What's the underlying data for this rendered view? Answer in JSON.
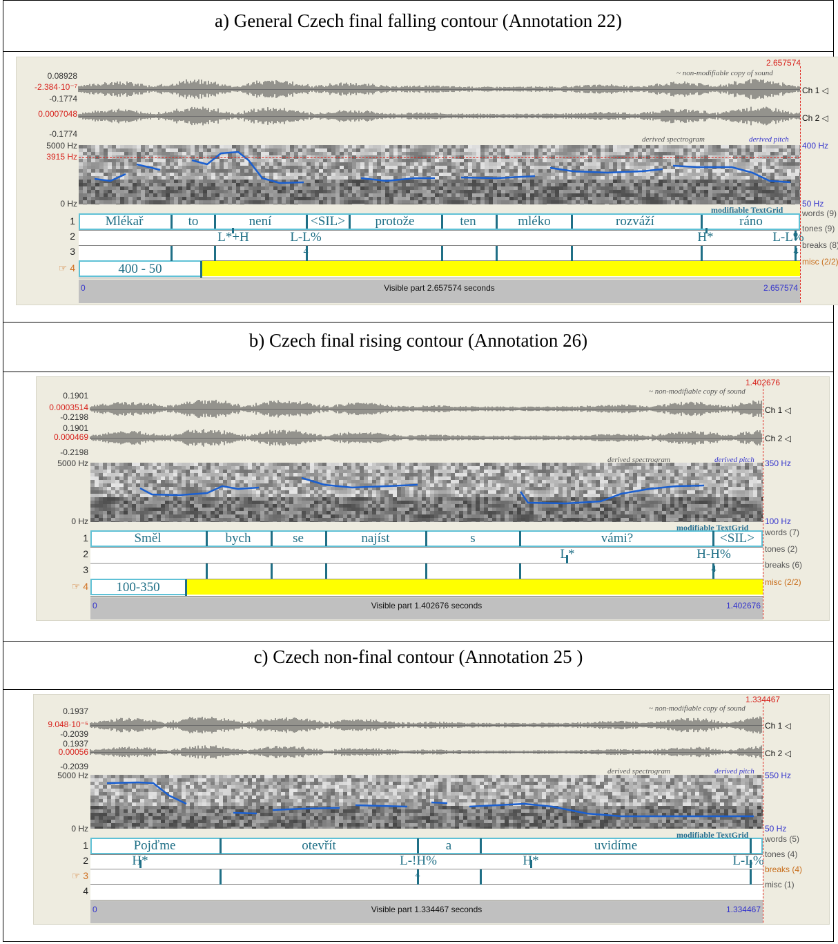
{
  "panels": [
    {
      "title": "a)   General Czech final falling contour (Annotation 22)",
      "end_time": "2.657574",
      "wave_label": "~ non-modifiable copy of sound",
      "ch1": {
        "top": "0.08928",
        "mid": "-2.384·10⁻⁷",
        "bot": "-0.1774",
        "name": "Ch 1 ◁"
      },
      "ch2": {
        "mid": "0.0007048",
        "bot": "-0.1774",
        "name": "Ch 2 ◁"
      },
      "spec": {
        "top_freq": "5000 Hz",
        "cursor_freq": "3915 Hz",
        "bot_freq": "0 Hz",
        "spec_label": "derived spectrogram",
        "pitch_label": "derived pitch",
        "pitch_top": "400 Hz",
        "pitch_bot": "50 Hz"
      },
      "textgrid_label": "modifiable TextGrid",
      "tier_names": [
        "words (9)",
        "tones (9)",
        "breaks (8)",
        "misc (2/2)"
      ],
      "words": [
        "Mlékař",
        "to",
        "není",
        "<SIL>",
        "protože",
        "ten",
        "mléko",
        "rozváží",
        "ráno"
      ],
      "tones": [
        "L*+H",
        "L-L%",
        "H*",
        "L-L%"
      ],
      "breaks": [
        "4",
        "4"
      ],
      "misc": [
        "400 - 50"
      ],
      "visible": "Visible part 2.657574 seconds",
      "start": "0",
      "end": "2.657574"
    },
    {
      "title": "b)   Czech final rising contour (Annotation 26)",
      "end_time": "1.402676",
      "wave_label": "~ non-modifiable copy of sound",
      "ch1": {
        "top": "0.1901",
        "mid": "0.0003514",
        "bot": "-0.2198",
        "name": "Ch 1 ◁"
      },
      "ch2": {
        "top": "0.1901",
        "mid": "0.000469",
        "bot": "-0.2198",
        "name": "Ch 2 ◁"
      },
      "spec": {
        "top_freq": "5000 Hz",
        "bot_freq": "0 Hz",
        "spec_label": "derived spectrogram",
        "pitch_label": "derived pitch",
        "pitch_top": "350 Hz",
        "pitch_bot": "100 Hz"
      },
      "textgrid_label": "modifiable TextGrid",
      "tier_names": [
        "words (7)",
        "tones (2)",
        "breaks (6)",
        "misc (2/2)"
      ],
      "words": [
        "Směl",
        "bych",
        "se",
        "najíst",
        "s",
        "vámi?",
        "<SIL>"
      ],
      "tones": [
        "L*",
        "H-H%"
      ],
      "breaks": [
        "4"
      ],
      "misc": [
        "100-350"
      ],
      "visible": "Visible part 1.402676 seconds",
      "start": "0",
      "end": "1.402676"
    },
    {
      "title": "c)   Czech non-final contour (Annotation 25 )",
      "end_time": "1.334467",
      "wave_label": "~ non-modifiable copy of sound",
      "ch1": {
        "top": "0.1937",
        "mid": "9.048·10⁻⁵",
        "bot": "-0.2039",
        "name": "Ch 1 ◁"
      },
      "ch2": {
        "top": "0.1937",
        "mid": "0.00056",
        "bot": "-0.2039",
        "name": "Ch 2 ◁"
      },
      "spec": {
        "top_freq": "5000 Hz",
        "bot_freq": "0 Hz",
        "spec_label": "derived spectrogram",
        "pitch_label": "derived pitch",
        "pitch_top": "550 Hz",
        "pitch_bot": "50 Hz"
      },
      "textgrid_label": "modifiable TextGrid",
      "tier_names": [
        "words (5)",
        "tones (4)",
        "breaks (4)",
        "misc (1)"
      ],
      "words": [
        "Pojďme",
        "otevřít",
        "a",
        "uvidíme"
      ],
      "tones": [
        "H*",
        "L-!H%",
        "H*",
        "L-L%"
      ],
      "breaks": [
        "4"
      ],
      "misc": [],
      "visible": "Visible part 1.334467 seconds",
      "start": "0",
      "end": "1.334467"
    }
  ],
  "colors": {
    "accent_teal": "#1f6f86",
    "selection_yellow": "#ffff00",
    "cursor_red": "#e0251e",
    "pitch_blue": "#1a5fd0"
  }
}
